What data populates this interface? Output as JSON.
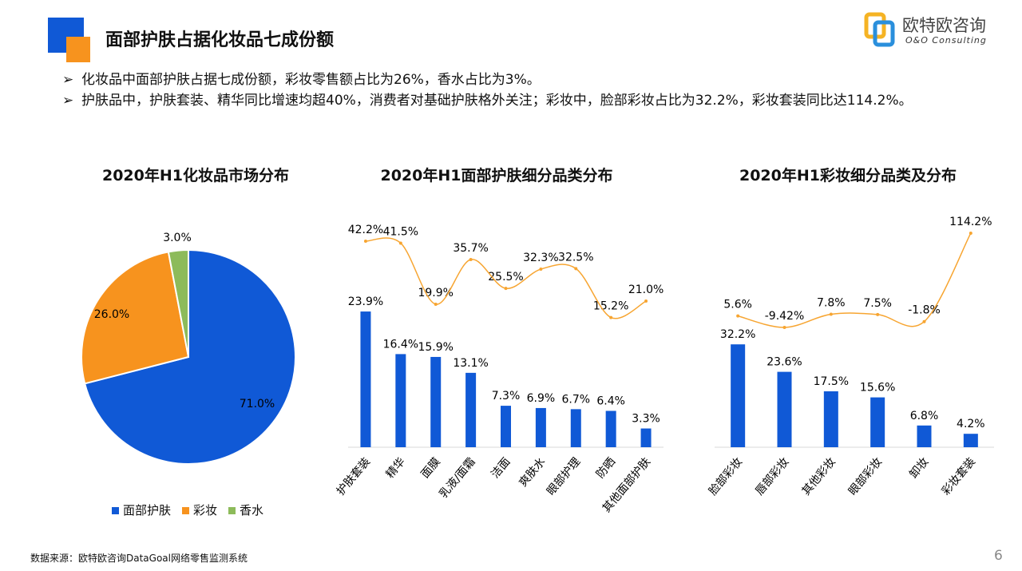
{
  "header": {
    "title": "面部护肤占据化妆品七成份额",
    "logo_text": "欧特欧咨询",
    "logo_sub": "O&O Consulting"
  },
  "bullets": [
    "化妆品中面部护肤占据七成份额，彩妆零售额占比为26%，香水占比为3%。",
    "护肤品中，护肤套装、精华同比增速均超40%，消费者对基础护肤格外关注；彩妆中，脸部彩妆占比为32.2%，彩妆套装同比达114.2%。"
  ],
  "footer": {
    "source": "数据来源：欧特欧咨询DataGoal网络零售监测系统",
    "page": "6"
  },
  "chart_data": [
    {
      "type": "pie",
      "title": "2020年H1化妆品市场分布",
      "categories": [
        "面部护肤",
        "彩妆",
        "香水"
      ],
      "values": [
        71.0,
        26.0,
        3.0
      ],
      "labels": [
        "71.0%",
        "26.0%",
        "3.0%"
      ],
      "colors": [
        "#1059d6",
        "#f7931e",
        "#8dbb5a"
      ],
      "legend": "bottom"
    },
    {
      "type": "bar+line",
      "title": "2020年H1面部护肤细分品类分布",
      "categories": [
        "护肤套装",
        "精华",
        "面膜",
        "乳液/面霜",
        "洁面",
        "爽肤水",
        "眼部护理",
        "防晒",
        "其他面部护肤"
      ],
      "bar_values": [
        23.9,
        16.4,
        15.9,
        13.1,
        7.3,
        6.9,
        6.7,
        6.4,
        3.3
      ],
      "bar_labels": [
        "23.9%",
        "16.4%",
        "15.9%",
        "13.1%",
        "7.3%",
        "6.9%",
        "6.7%",
        "6.4%",
        "3.3%"
      ],
      "line_values": [
        42.2,
        41.5,
        19.9,
        35.7,
        25.5,
        32.3,
        32.5,
        15.2,
        21.0
      ],
      "line_labels": [
        "42.2%",
        "41.5%",
        "19.9%",
        "35.7%",
        "25.5%",
        "32.3%",
        "32.5%",
        "15.2%",
        "21.0%"
      ],
      "bar_color": "#1059d6",
      "line_color": "#f7a531"
    },
    {
      "type": "bar+line",
      "title": "2020年H1彩妆细分品类及分布",
      "categories": [
        "脸部彩妆",
        "唇部彩妆",
        "其他彩妆",
        "眼部彩妆",
        "卸妆",
        "彩妆套装"
      ],
      "bar_values": [
        32.2,
        23.6,
        17.5,
        15.6,
        6.8,
        4.2
      ],
      "bar_labels": [
        "32.2%",
        "23.6%",
        "17.5%",
        "15.6%",
        "6.8%",
        "4.2%"
      ],
      "line_values": [
        5.6,
        -9.42,
        7.8,
        7.5,
        -1.8,
        114.2
      ],
      "line_labels": [
        "5.6%",
        "-9.42%",
        "7.8%",
        "7.5%",
        "-1.8%",
        "114.2%"
      ],
      "bar_color": "#1059d6",
      "line_color": "#f7a531"
    }
  ]
}
